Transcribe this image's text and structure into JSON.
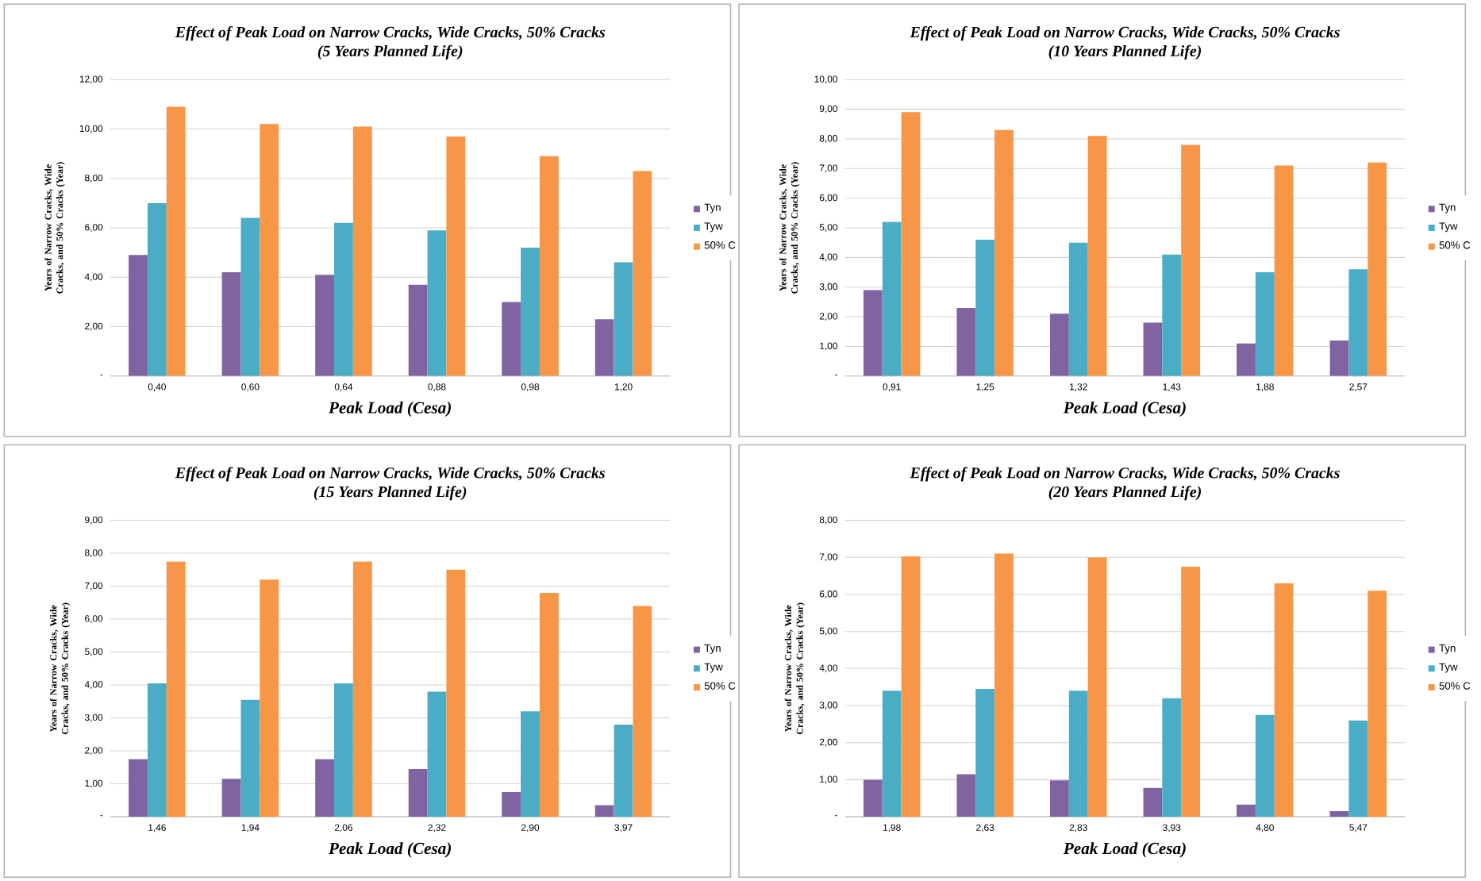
{
  "chart_data": [
    {
      "type": "bar",
      "title": "Effect of Peak Load on Narrow Cracks, Wide Cracks, 50% Cracks",
      "subtitle": "(5 Years Planned Life)",
      "xlabel": "Peak Load (Cesa)",
      "ylabel": "Years of Narrow Cracks, Wide Cracks, and 50% Cracks (Year)",
      "categories": [
        "0,40",
        "0,60",
        "0,64",
        "0,88",
        "0,98",
        "1,20"
      ],
      "series": [
        {
          "name": "Tyn",
          "color": "#8064a2",
          "values": [
            4.9,
            4.2,
            4.1,
            3.7,
            3.0,
            2.3
          ]
        },
        {
          "name": "Tyw",
          "color": "#4bacc6",
          "values": [
            7.0,
            6.4,
            6.2,
            5.9,
            5.2,
            4.6
          ]
        },
        {
          "name": "50% C",
          "color": "#f79646",
          "values": [
            10.9,
            10.2,
            10.1,
            9.7,
            8.9,
            8.3
          ]
        }
      ],
      "ylim": [
        0,
        12
      ],
      "yticks": [
        {
          "value": 0,
          "label": "-"
        },
        {
          "value": 2,
          "label": "2,00"
        },
        {
          "value": 4,
          "label": "4,00"
        },
        {
          "value": 6,
          "label": "6,00"
        },
        {
          "value": 8,
          "label": "8,00"
        },
        {
          "value": 10,
          "label": "10,00"
        },
        {
          "value": 12,
          "label": "12,00"
        }
      ],
      "grid": "y",
      "legend": "right"
    },
    {
      "type": "bar",
      "title": "Effect of Peak Load on Narrow Cracks, Wide Cracks, 50% Cracks",
      "subtitle": "(10 Years Planned Life)",
      "xlabel": "Peak Load (Cesa)",
      "ylabel": "Years of Narrow Cracks, Wide Cracks, and 50% Cracks (Year)",
      "categories": [
        "0,91",
        "1,25",
        "1,32",
        "1,43",
        "1,88",
        "2,57"
      ],
      "series": [
        {
          "name": "Tyn",
          "color": "#8064a2",
          "values": [
            2.9,
            2.3,
            2.1,
            1.8,
            1.1,
            1.2
          ]
        },
        {
          "name": "Tyw",
          "color": "#4bacc6",
          "values": [
            5.2,
            4.6,
            4.5,
            4.1,
            3.5,
            3.6
          ]
        },
        {
          "name": "50% C",
          "color": "#f79646",
          "values": [
            8.9,
            8.3,
            8.1,
            7.8,
            7.1,
            7.2
          ]
        }
      ],
      "ylim": [
        0,
        10
      ],
      "yticks": [
        {
          "value": 0,
          "label": "-"
        },
        {
          "value": 1,
          "label": "1,00"
        },
        {
          "value": 2,
          "label": "2,00"
        },
        {
          "value": 3,
          "label": "3,00"
        },
        {
          "value": 4,
          "label": "4,00"
        },
        {
          "value": 5,
          "label": "5,00"
        },
        {
          "value": 6,
          "label": "6,00"
        },
        {
          "value": 7,
          "label": "7,00"
        },
        {
          "value": 8,
          "label": "8,00"
        },
        {
          "value": 9,
          "label": "9,00"
        },
        {
          "value": 10,
          "label": "10,00"
        }
      ],
      "grid": "y",
      "legend": "right"
    },
    {
      "type": "bar",
      "title": "Effect of Peak Load on Narrow Cracks, Wide Cracks, 50% Cracks",
      "subtitle": "(15 Years Planned Life)",
      "xlabel": "Peak Load (Cesa)",
      "ylabel": "Years of Narrow Cracks, Wide Cracks, and 50% Cracks (Year)",
      "categories": [
        "1,46",
        "1,94",
        "2,06",
        "2,32",
        "2,90",
        "3,97"
      ],
      "series": [
        {
          "name": "Tyn",
          "color": "#8064a2",
          "values": [
            1.75,
            1.15,
            1.75,
            1.45,
            0.75,
            0.35
          ]
        },
        {
          "name": "Tyw",
          "color": "#4bacc6",
          "values": [
            4.05,
            3.55,
            4.05,
            3.8,
            3.2,
            2.8
          ]
        },
        {
          "name": "50% C",
          "color": "#f79646",
          "values": [
            7.75,
            7.2,
            7.75,
            7.5,
            6.8,
            6.4
          ]
        }
      ],
      "ylim": [
        0,
        9
      ],
      "yticks": [
        {
          "value": 0,
          "label": "-"
        },
        {
          "value": 1,
          "label": "1,00"
        },
        {
          "value": 2,
          "label": "2,00"
        },
        {
          "value": 3,
          "label": "3,00"
        },
        {
          "value": 4,
          "label": "4,00"
        },
        {
          "value": 5,
          "label": "5,00"
        },
        {
          "value": 6,
          "label": "6,00"
        },
        {
          "value": 7,
          "label": "7,00"
        },
        {
          "value": 8,
          "label": "8,00"
        },
        {
          "value": 9,
          "label": "9,00"
        }
      ],
      "grid": "y",
      "legend": "right"
    },
    {
      "type": "bar",
      "title": "Effect of Peak Load on Narrow Cracks, Wide Cracks, 50% Cracks",
      "subtitle": "(20 Years Planned Life)",
      "xlabel": "Peak Load (Cesa)",
      "ylabel": "Years of Narrow Cracks, Wide Cracks, and 50% Cracks (Year)",
      "categories": [
        "1,98",
        "2,63",
        "2,83",
        "3,93",
        "4,80",
        "5,47"
      ],
      "series": [
        {
          "name": "Tyn",
          "color": "#8064a2",
          "values": [
            1.0,
            1.15,
            0.98,
            0.78,
            0.33,
            0.15
          ]
        },
        {
          "name": "Tyw",
          "color": "#4bacc6",
          "values": [
            3.4,
            3.45,
            3.4,
            3.2,
            2.75,
            2.6
          ]
        },
        {
          "name": "50% C",
          "color": "#f79646",
          "values": [
            7.03,
            7.1,
            7.0,
            6.75,
            6.3,
            6.1
          ]
        }
      ],
      "ylim": [
        0,
        8
      ],
      "yticks": [
        {
          "value": 0,
          "label": "-"
        },
        {
          "value": 1,
          "label": "1,00"
        },
        {
          "value": 2,
          "label": "2,00"
        },
        {
          "value": 3,
          "label": "3,00"
        },
        {
          "value": 4,
          "label": "4,00"
        },
        {
          "value": 5,
          "label": "5,00"
        },
        {
          "value": 6,
          "label": "6,00"
        },
        {
          "value": 7,
          "label": "7,00"
        },
        {
          "value": 8,
          "label": "8,00"
        }
      ],
      "grid": "y",
      "legend": "right"
    }
  ]
}
